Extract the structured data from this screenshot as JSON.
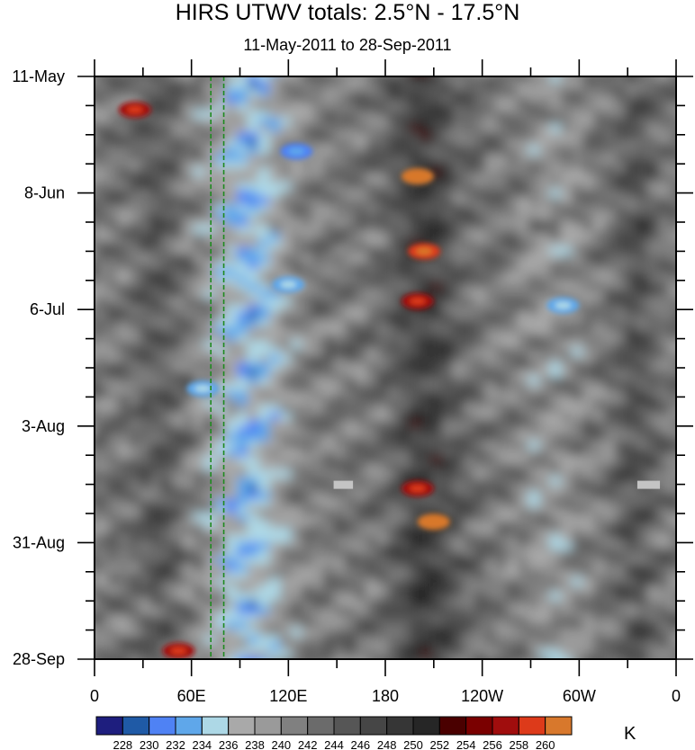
{
  "chart_data": {
    "type": "heatmap",
    "title": "HIRS UTWV totals: 2.5°N - 17.5°N",
    "subtitle": "11-May-2011 to 28-Sep-2011",
    "x_axis": {
      "range_deg_east": [
        0,
        360
      ],
      "major_ticks": [
        0,
        60,
        120,
        180,
        240,
        300,
        360
      ],
      "tick_labels": [
        "0",
        "60E",
        "120E",
        "180",
        "120W",
        "60W",
        "0"
      ],
      "minor_tick_step_deg": 30
    },
    "y_axis": {
      "range_days_since_11May": [
        0,
        140
      ],
      "reversed": true,
      "major_ticks": [
        0,
        28,
        56,
        84,
        112,
        140
      ],
      "tick_labels": [
        "11-May",
        "8-Jun",
        "6-Jul",
        "3-Aug",
        "31-Aug",
        "28-Sep"
      ],
      "minor_tick_step_days": 7
    },
    "units": "K",
    "colorbar": {
      "levels": [
        228,
        230,
        232,
        234,
        236,
        238,
        240,
        242,
        244,
        246,
        248,
        250,
        252,
        254,
        256,
        258,
        260
      ],
      "colors": [
        "#1e1e7e",
        "#1f5aa6",
        "#4f82f4",
        "#5fa7ea",
        "#add8e6",
        "#a9a9a9",
        "#9a9a9a",
        "#808080",
        "#6b6b6b",
        "#565656",
        "#464646",
        "#363636",
        "#262626",
        "#4a0000",
        "#7a0000",
        "#a00d0d",
        "#dd3a1a",
        "#d8782c"
      ]
    },
    "reference_lines_lon_deg_east": [
      72,
      80
    ],
    "missing_data_segments": [
      {
        "lon_start": 350,
        "lon_end": 336,
        "day": 98
      },
      {
        "lon_start": 148,
        "lon_end": 160,
        "day": 98
      }
    ],
    "features": [
      {
        "lon": 67,
        "day": 75,
        "value": 232
      },
      {
        "lon": 120,
        "day": 50,
        "value": 232
      },
      {
        "lon": 125,
        "day": 18,
        "value": 230
      },
      {
        "lon": 200,
        "day": 24,
        "value": 260
      },
      {
        "lon": 204,
        "day": 42,
        "value": 258
      },
      {
        "lon": 200,
        "day": 54,
        "value": 256
      },
      {
        "lon": 210,
        "day": 107,
        "value": 260
      },
      {
        "lon": 200,
        "day": 99,
        "value": 256
      },
      {
        "lon": 52,
        "day": 138,
        "value": 256
      },
      {
        "lon": 290,
        "day": 55,
        "value": 232
      },
      {
        "lon": 25,
        "day": 8,
        "value": 256
      }
    ]
  }
}
